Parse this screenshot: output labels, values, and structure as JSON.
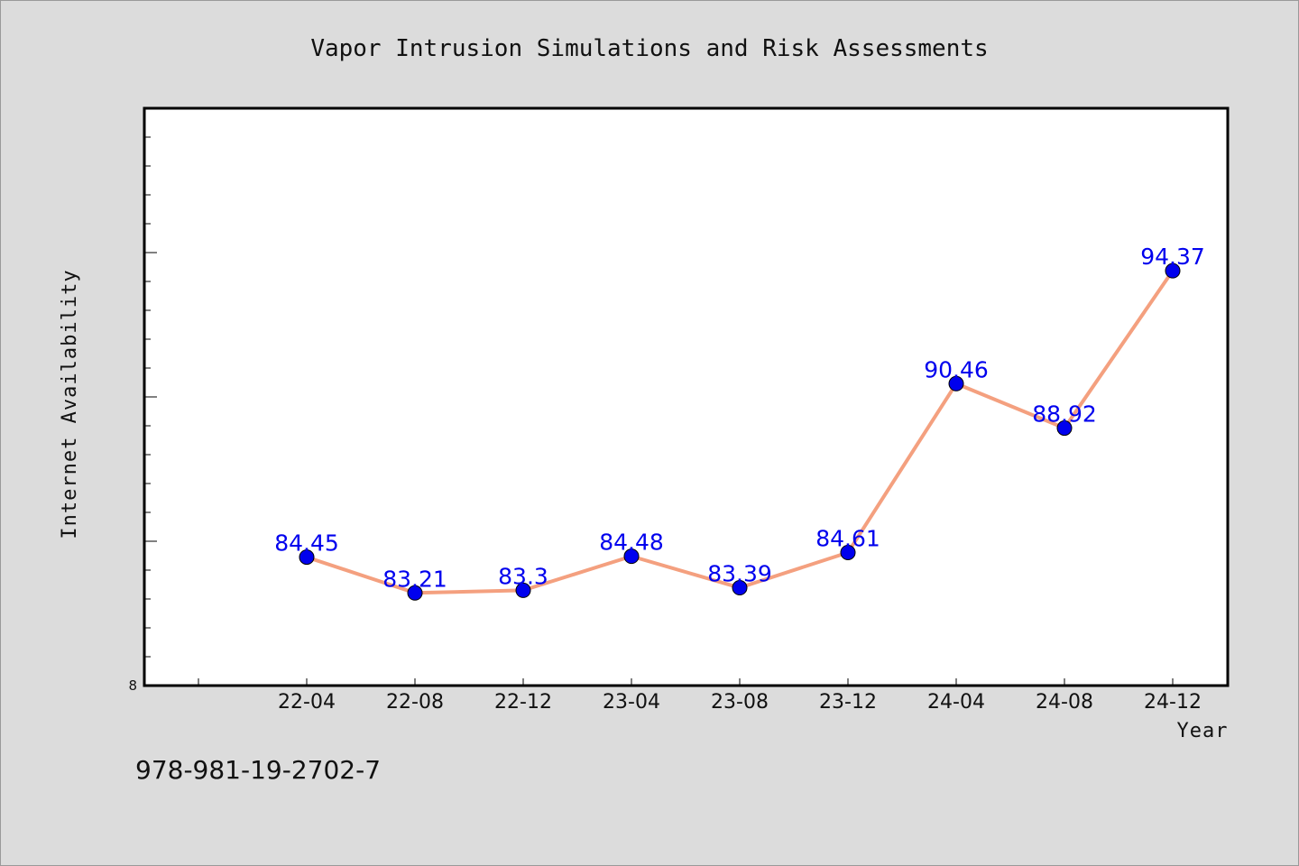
{
  "footer": {
    "isbn": "978-981-19-2702-7"
  },
  "colors": {
    "line": "#f4a07f",
    "marker": "#0000ee",
    "label": "#0000ee",
    "background": "#dcdcdc",
    "plot_bg": "#ffffff"
  },
  "chart_data": {
    "type": "line",
    "title": "Vapor Intrusion Simulations and Risk Assessments",
    "xlabel": "Year",
    "ylabel": "Internet Availability",
    "categories": [
      "22-04",
      "22-08",
      "22-12",
      "23-04",
      "23-08",
      "23-12",
      "24-04",
      "24-08",
      "24-12"
    ],
    "series": [
      {
        "values": [
          84.45,
          83.21,
          83.3,
          84.48,
          83.39,
          84.61,
          90.46,
          88.92,
          94.37
        ]
      }
    ],
    "y_tick_labels": [
      "8"
    ],
    "ylim": [
      80,
      100
    ],
    "grid": false,
    "legend": "none"
  }
}
